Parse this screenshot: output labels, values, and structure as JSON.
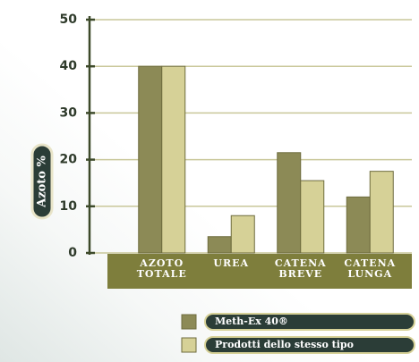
{
  "chart_data": {
    "type": "bar",
    "y_label": "Azoto %",
    "categories": [
      "AZOTO TOTALE",
      "UREA",
      "CATENA BREVE",
      "CATENA LUNGA"
    ],
    "series": [
      {
        "name": "Meth-Ex 40®",
        "color": "#8c8a56",
        "values": [
          40,
          3.5,
          21.5,
          12
        ]
      },
      {
        "name": "Prodotti dello stesso tipo",
        "color": "#d6d197",
        "values": [
          40,
          8,
          15.5,
          17.5
        ]
      }
    ],
    "ylim": [
      0,
      50
    ],
    "yticks": [
      0,
      10,
      20,
      30,
      40,
      50
    ],
    "grid": true
  }
}
